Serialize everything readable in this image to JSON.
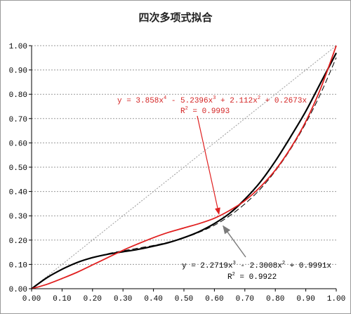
{
  "chart_data": {
    "type": "line",
    "title": "四次多项式拟合",
    "xlabel": "",
    "ylabel": "",
    "xlim": [
      0,
      1
    ],
    "ylim": [
      0,
      1
    ],
    "x_ticks": [
      "0.00",
      "0.10",
      "0.20",
      "0.30",
      "0.40",
      "0.50",
      "0.60",
      "0.70",
      "0.80",
      "0.90",
      "1.00"
    ],
    "y_ticks": [
      "0.00",
      "0.10",
      "0.20",
      "0.30",
      "0.40",
      "0.50",
      "0.60",
      "0.70",
      "0.80",
      "0.90",
      "1.00"
    ],
    "grid": true,
    "series": [
      {
        "style": "black-solid",
        "x": [
          0,
          0.05,
          0.1,
          0.15,
          0.2,
          0.25,
          0.3,
          0.35,
          0.4,
          0.45,
          0.5,
          0.55,
          0.6,
          0.65,
          0.7,
          0.75,
          0.8,
          0.85,
          0.9,
          0.95,
          1.0
        ],
        "y": [
          0,
          0.045,
          0.08,
          0.108,
          0.128,
          0.142,
          0.152,
          0.162,
          0.175,
          0.19,
          0.21,
          0.235,
          0.268,
          0.31,
          0.368,
          0.438,
          0.525,
          0.625,
          0.73,
          0.85,
          0.97
        ]
      },
      {
        "style": "red-solid",
        "x": [
          0,
          0.05,
          0.1,
          0.15,
          0.2,
          0.25,
          0.3,
          0.35,
          0.4,
          0.45,
          0.5,
          0.55,
          0.6,
          0.65,
          0.7,
          0.75,
          0.8,
          0.85,
          0.9,
          0.95,
          1.0
        ],
        "y": [
          0,
          0.018,
          0.042,
          0.068,
          0.098,
          0.128,
          0.158,
          0.185,
          0.21,
          0.232,
          0.25,
          0.268,
          0.29,
          0.322,
          0.362,
          0.418,
          0.488,
          0.578,
          0.688,
          0.828,
          1.0
        ]
      },
      {
        "style": "black-dashed",
        "x": [
          0,
          0.05,
          0.1,
          0.15,
          0.2,
          0.25,
          0.3,
          0.35,
          0.4,
          0.45,
          0.5,
          0.55,
          0.6,
          0.65,
          0.7,
          0.75,
          0.8,
          0.85,
          0.9,
          0.95,
          1.0
        ],
        "y": [
          0,
          0.044,
          0.079,
          0.107,
          0.128,
          0.144,
          0.156,
          0.167,
          0.178,
          0.192,
          0.209,
          0.232,
          0.261,
          0.3,
          0.349,
          0.409,
          0.484,
          0.574,
          0.681,
          0.806,
          0.951
        ]
      },
      {
        "style": "gray-dotted",
        "x": [
          0,
          1
        ],
        "y": [
          0,
          1
        ]
      }
    ],
    "annotations": [
      {
        "color": "red",
        "line1": {
          "prefix": "y = 3.858x",
          "exp1": "4",
          "mid1": " - 5.2396x",
          "exp2": "3",
          "mid2": " + 2.112x",
          "exp3": "2",
          "suffix": " + 0.2673x"
        },
        "line2": {
          "label": "R",
          "exp": "2",
          "value": " = 0.9993"
        },
        "arrow_to": [
          0.615,
          0.295
        ]
      },
      {
        "color": "black",
        "line1": {
          "prefix": "y = 2.2719x",
          "exp1": "3",
          "mid1": " - 2.3008x",
          "exp2": "2",
          "suffix": " + 0.9991x"
        },
        "line2": {
          "label": "R",
          "exp": "2",
          "value": " = 0.9922"
        },
        "arrow_to": [
          0.61,
          0.27
        ]
      }
    ]
  }
}
